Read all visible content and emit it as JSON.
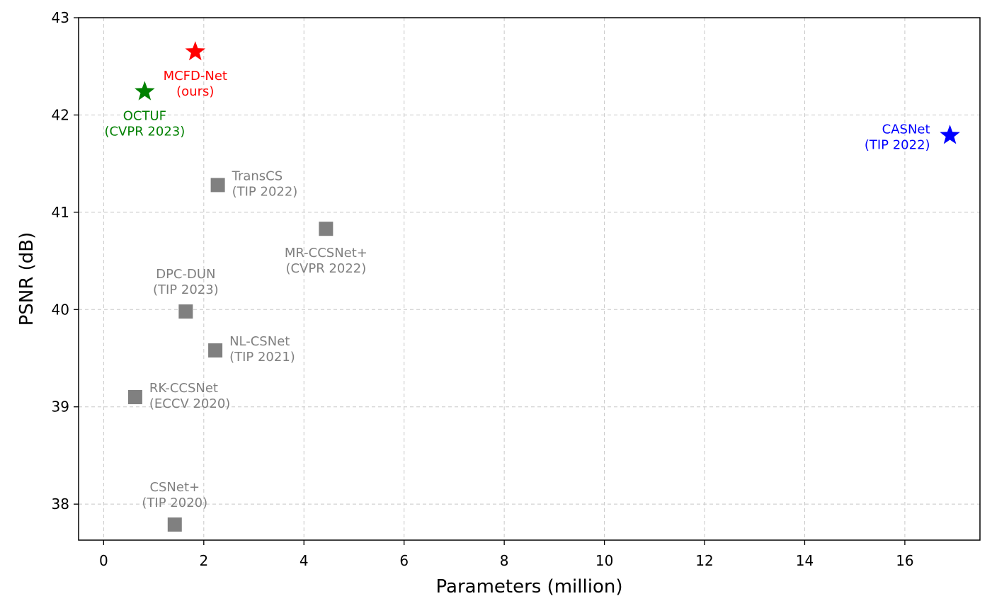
{
  "chart_data": {
    "type": "scatter",
    "title": "",
    "xlabel": "Parameters (million)",
    "ylabel": "PSNR (dB)",
    "xlim": [
      -0.5,
      17.5
    ],
    "ylim": [
      37.63,
      43.0
    ],
    "xticks": [
      0,
      2,
      4,
      6,
      8,
      10,
      12,
      14,
      16
    ],
    "yticks": [
      38,
      39,
      40,
      41,
      42,
      43
    ],
    "grid": true,
    "points": [
      {
        "line1": "MCFD-Net",
        "line2": "(ours)",
        "x": 1.83,
        "y": 42.65,
        "marker": "star",
        "color": "#ff0000",
        "label_pos": "below"
      },
      {
        "line1": "OCTUF",
        "line2": "(CVPR 2023)",
        "x": 0.82,
        "y": 42.24,
        "marker": "star",
        "color": "#008000",
        "label_pos": "below"
      },
      {
        "line1": "CASNet",
        "line2": "(TIP 2022)",
        "x": 16.9,
        "y": 41.79,
        "marker": "star",
        "color": "#0000ff",
        "label_pos": "left"
      },
      {
        "line1": "TransCS",
        "line2": "(TIP 2022)",
        "x": 2.28,
        "y": 41.28,
        "marker": "square",
        "color": "#808080",
        "label_pos": "right"
      },
      {
        "line1": "MR-CCSNet+",
        "line2": "(CVPR 2022)",
        "x": 4.44,
        "y": 40.83,
        "marker": "square",
        "color": "#808080",
        "label_pos": "below"
      },
      {
        "line1": "DPC-DUN",
        "line2": "(TIP 2023)",
        "x": 1.64,
        "y": 39.98,
        "marker": "square",
        "color": "#808080",
        "label_pos": "above"
      },
      {
        "line1": "NL-CSNet",
        "line2": "(TIP 2021)",
        "x": 2.23,
        "y": 39.58,
        "marker": "square",
        "color": "#808080",
        "label_pos": "right"
      },
      {
        "line1": "RK-CCSNet",
        "line2": "(ECCV 2020)",
        "x": 0.63,
        "y": 39.1,
        "marker": "square",
        "color": "#808080",
        "label_pos": "right"
      },
      {
        "line1": "CSNet+",
        "line2": "(TIP 2020)",
        "x": 1.42,
        "y": 37.79,
        "marker": "square",
        "color": "#808080",
        "label_pos": "above"
      }
    ]
  }
}
